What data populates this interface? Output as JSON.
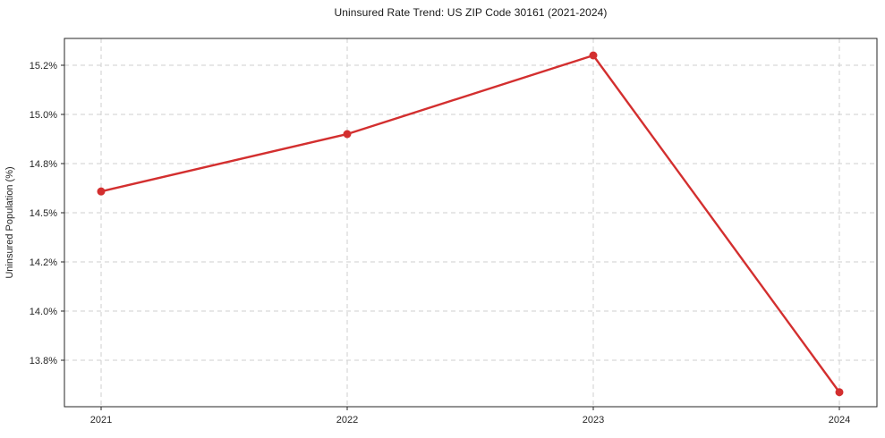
{
  "figure": {
    "background": "#ffffff"
  },
  "chart_data": {
    "type": "line",
    "title": "Uninsured Rate Trend: US ZIP Code 30161 (2021-2024)",
    "xlabel": "",
    "ylabel": "Uninsured Population (%)",
    "categories": [
      "2021",
      "2022",
      "2023",
      "2024"
    ],
    "series": [
      {
        "name": "Uninsured Population (%)",
        "color": "#d32f2f",
        "values": [
          14.63,
          14.92,
          15.24,
          13.67
        ]
      }
    ],
    "y_ticks": [
      {
        "label": "15.2%",
        "value": 15.2
      },
      {
        "label": "15.0%",
        "value": 15.0
      },
      {
        "label": "14.8%",
        "value": 14.8
      },
      {
        "label": "14.5%",
        "value": 14.5
      },
      {
        "label": "14.2%",
        "value": 14.2
      },
      {
        "label": "14.0%",
        "value": 14.0
      },
      {
        "label": "13.8%",
        "value": 13.8
      }
    ],
    "grid": true,
    "grid_style": "dashed",
    "grid_color": "#cfcfcf",
    "axis_color": "#262626",
    "tick_text_color": "#262626",
    "legend_position": "none"
  }
}
